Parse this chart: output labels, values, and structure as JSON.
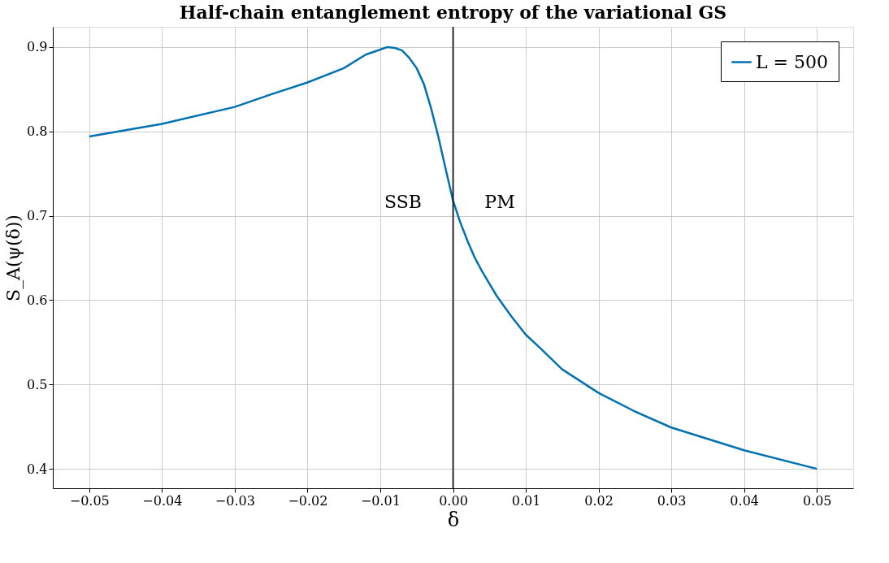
{
  "chart_data": {
    "type": "line",
    "title": "Half-chain entanglement entropy of the variational GS",
    "xlabel": "δ",
    "ylabel": "S_A(ψ(δ))",
    "series": [
      {
        "name": "L = 500",
        "color": "#0072b2",
        "x": [
          -0.05,
          -0.04,
          -0.03,
          -0.025,
          -0.02,
          -0.015,
          -0.012,
          -0.01,
          -0.009,
          -0.008,
          -0.007,
          -0.006,
          -0.005,
          -0.004,
          -0.003,
          -0.002,
          -0.001,
          0,
          0.001,
          0.002,
          0.003,
          0.004,
          0.006,
          0.008,
          0.01,
          0.012,
          0.015,
          0.02,
          0.025,
          0.03,
          0.04,
          0.05
        ],
        "values": [
          0.794,
          0.809,
          0.829,
          0.844,
          0.858,
          0.875,
          0.891,
          0.897,
          0.9,
          0.899,
          0.896,
          0.887,
          0.875,
          0.856,
          0.827,
          0.793,
          0.755,
          0.718,
          0.692,
          0.67,
          0.65,
          0.634,
          0.605,
          0.581,
          0.559,
          0.543,
          0.518,
          0.49,
          0.468,
          0.449,
          0.422,
          0.4
        ]
      }
    ],
    "xlim": [
      -0.055,
      0.055
    ],
    "ylim": [
      0.377,
      0.924
    ],
    "xticks": [
      {
        "value": -0.05,
        "label": "−0.05"
      },
      {
        "value": -0.04,
        "label": "−0.04"
      },
      {
        "value": -0.03,
        "label": "−0.03"
      },
      {
        "value": -0.02,
        "label": "−0.02"
      },
      {
        "value": -0.01,
        "label": "−0.01"
      },
      {
        "value": 0,
        "label": "0.00"
      },
      0.01,
      0.02,
      0.03,
      0.04,
      0.05
    ],
    "yticks": [
      0.4,
      0.5,
      0.6,
      0.7,
      0.8,
      0.9
    ],
    "ref_lines": [
      {
        "axis": "x",
        "value": 0,
        "color": "#000000"
      }
    ],
    "annotations": [
      "SSB",
      "PM"
    ],
    "grid": true,
    "legend": "top right",
    "line_style": "solid",
    "marker": "none"
  }
}
